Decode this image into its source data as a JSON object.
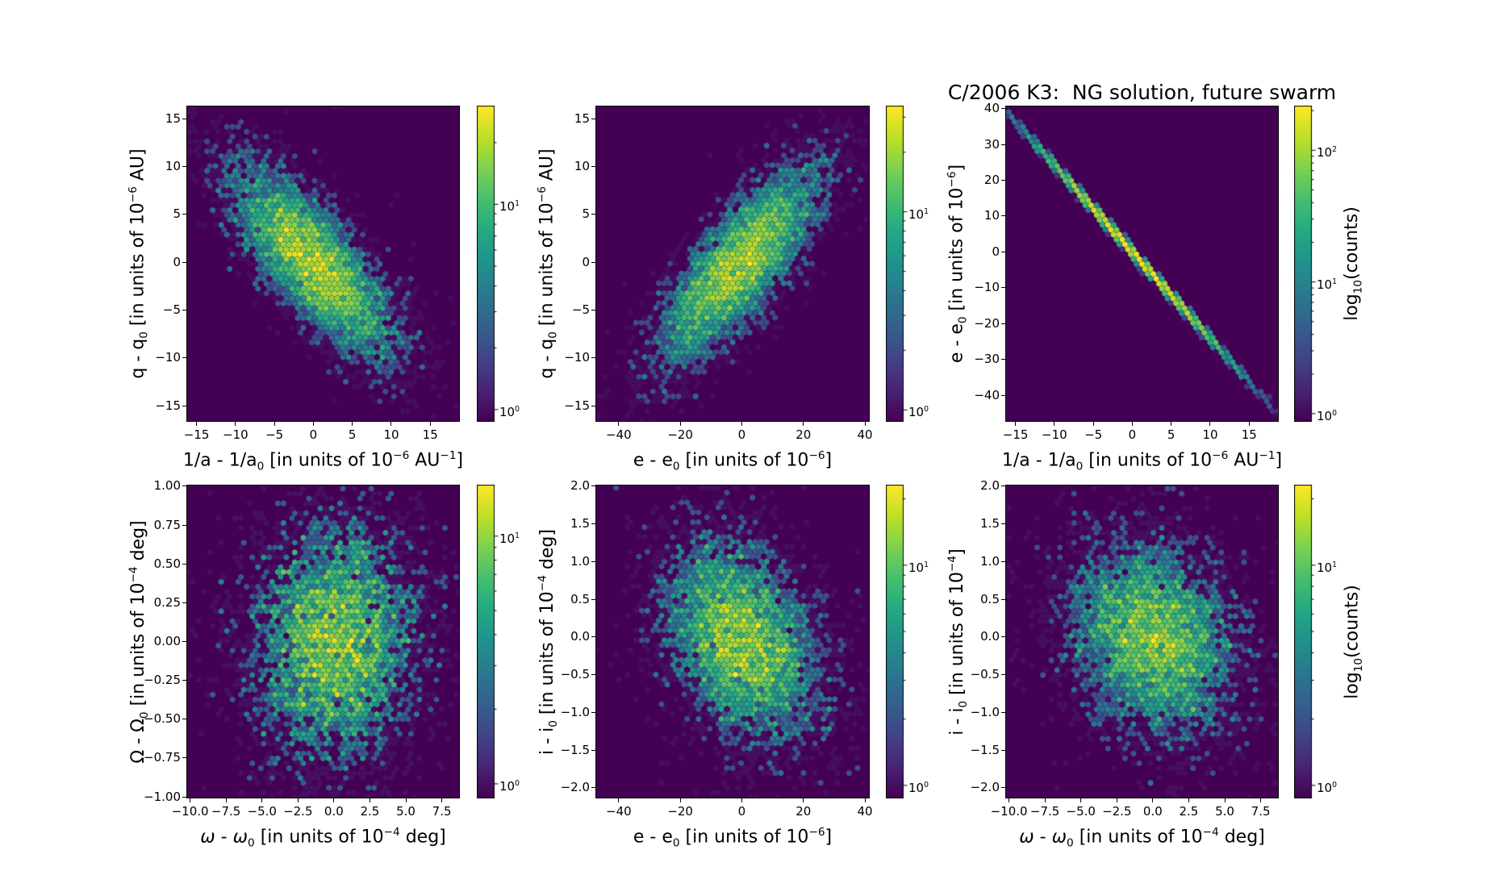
{
  "title": "C/2006 K3:  NG solution, future swarm",
  "chart_data": [
    {
      "type": "hexbin",
      "xlabel": "1/a - 1/a₀ [in units of 10⁻⁶ AU⁻¹]",
      "ylabel": "q - q₀ [in units of 10⁻⁶ AU]",
      "xlim": [
        -16.2,
        18.7
      ],
      "ylim": [
        -16.6,
        16.3
      ],
      "xtick_vals": [
        -15,
        -10,
        -5,
        0,
        5,
        10,
        15
      ],
      "xtick_labels": [
        "−15",
        "−10",
        "−5",
        "0",
        "5",
        "10",
        "15"
      ],
      "ytick_vals": [
        15,
        10,
        5,
        0,
        -5,
        -10,
        -15
      ],
      "ytick_labels": [
        "15",
        "10",
        "5",
        "0",
        "−5",
        "−10",
        "−15"
      ],
      "colorbar_tick_labels": [
        "10⁰",
        "10¹"
      ],
      "dist": {
        "n": 6200,
        "cx": 0,
        "cy": 0,
        "sx": 5.4,
        "sy": 5.1,
        "rho": -0.78,
        "seed": 101,
        "tf": 0.05,
        "ts": 1.5
      }
    },
    {
      "type": "hexbin",
      "xlabel": "e - e₀ [in units of 10⁻⁶]",
      "ylabel": "q - q₀ [in units of 10⁻⁶ AU]",
      "xlim": [
        -47.3,
        41.3
      ],
      "ylim": [
        -16.6,
        16.3
      ],
      "xtick_vals": [
        -40,
        -20,
        0,
        20,
        40
      ],
      "xtick_labels": [
        "−40",
        "−20",
        "0",
        "20",
        "40"
      ],
      "ytick_vals": [
        15,
        10,
        5,
        0,
        -5,
        -10,
        -15
      ],
      "ytick_labels": [
        "15",
        "10",
        "5",
        "0",
        "−5",
        "−10",
        "−15"
      ],
      "colorbar_tick_labels": [
        "10⁰",
        "10¹"
      ],
      "dist": {
        "n": 6200,
        "cx": 0,
        "cy": 0,
        "sx": 13,
        "sy": 5.1,
        "rho": 0.78,
        "seed": 202,
        "tf": 0.05,
        "ts": 1.5
      }
    },
    {
      "type": "hexbin",
      "xlabel": "1/a - 1/a₀ [in units of 10⁻⁶ AU⁻¹]",
      "ylabel": "e - e₀ [in units of 10⁻⁶]",
      "xlim": [
        -16.2,
        18.7
      ],
      "ylim": [
        -47.2,
        40.6
      ],
      "xtick_vals": [
        -15,
        -10,
        -5,
        0,
        5,
        10,
        15
      ],
      "xtick_labels": [
        "−15",
        "−10",
        "−5",
        "0",
        "5",
        "10",
        "15"
      ],
      "ytick_vals": [
        40,
        30,
        20,
        10,
        0,
        -10,
        -20,
        -30,
        -40
      ],
      "ytick_labels": [
        "40",
        "30",
        "20",
        "10",
        "0",
        "−10",
        "−20",
        "−30",
        "−40"
      ],
      "colorbar_tick_labels": [
        "10⁰",
        "10¹",
        "10²"
      ],
      "colorbar_label": "log₁₀(counts)",
      "dist": {
        "n": 7200,
        "cx": 0,
        "cy": 0,
        "sx": 6.0,
        "sy": 0.6,
        "slope": -2.42,
        "seed": 303,
        "tf": 0.05,
        "ts": 1.5
      }
    },
    {
      "type": "hexbin",
      "xlabel": "ω - ω₀ [in units of 10⁻⁴ deg]",
      "ylabel": "Ω - Ω₀ [in units of 10⁻⁴ deg]",
      "xlim": [
        -10.2,
        8.7
      ],
      "ylim": [
        -1.005,
        1.005
      ],
      "xtick_vals": [
        -10,
        -7.5,
        -5,
        -2.5,
        0,
        2.5,
        5,
        7.5
      ],
      "xtick_labels": [
        "−10.0",
        "−7.5",
        "−5.0",
        "−2.5",
        "0.0",
        "2.5",
        "5.0",
        "7.5"
      ],
      "ytick_vals": [
        1,
        0.75,
        0.5,
        0.25,
        0,
        -0.25,
        -0.5,
        -0.75,
        -1
      ],
      "ytick_labels": [
        "1.00",
        "0.75",
        "0.50",
        "0.25",
        "0.00",
        "−0.25",
        "−0.50",
        "−0.75",
        "−1.00"
      ],
      "colorbar_tick_labels": [
        "10⁰",
        "10¹"
      ],
      "dist": {
        "n": 6000,
        "cx": 0,
        "cy": 0,
        "sx": 2.9,
        "sy": 0.4,
        "rho": 0.05,
        "seed": 404,
        "tf": 0.1,
        "ts": 1.6
      }
    },
    {
      "type": "hexbin",
      "xlabel": "e - e₀ [in units of 10⁻⁶]",
      "ylabel": "i - i₀ [in units of 10⁻⁴ deg]",
      "xlim": [
        -47.3,
        41.3
      ],
      "ylim": [
        -2.13,
        2.01
      ],
      "xtick_vals": [
        -40,
        -20,
        0,
        20,
        40
      ],
      "xtick_labels": [
        "−40",
        "−20",
        "0",
        "20",
        "40"
      ],
      "ytick_vals": [
        2,
        1.5,
        1,
        0.5,
        0,
        -0.5,
        -1,
        -1.5,
        -2
      ],
      "ytick_labels": [
        "2.0",
        "1.5",
        "1.0",
        "0.5",
        "0.0",
        "−0.5",
        "−1.0",
        "−1.5",
        "−2.0"
      ],
      "colorbar_tick_labels": [
        "10⁰",
        "10¹"
      ],
      "dist": {
        "n": 6200,
        "cx": 0,
        "cy": -0.05,
        "sx": 12.5,
        "sy": 0.66,
        "rho": -0.3,
        "seed": 505,
        "tf": 0.1,
        "ts": 1.6
      }
    },
    {
      "type": "hexbin",
      "xlabel": "ω - ω₀ [in units of 10⁻⁴ deg]",
      "ylabel": "i - i₀ [in units of 10⁻⁴]",
      "xlim": [
        -10.2,
        8.7
      ],
      "ylim": [
        -2.13,
        2.01
      ],
      "xtick_vals": [
        -10,
        -7.5,
        -5,
        -2.5,
        0,
        2.5,
        5,
        7.5
      ],
      "xtick_labels": [
        "−10.0",
        "−7.5",
        "−5.0",
        "−2.5",
        "0.0",
        "2.5",
        "5.0",
        "7.5"
      ],
      "ytick_vals": [
        2,
        1.5,
        1,
        0.5,
        0,
        -0.5,
        -1,
        -1.5,
        -2
      ],
      "ytick_labels": [
        "2.0",
        "1.5",
        "1.0",
        "0.5",
        "0.0",
        "−0.5",
        "−1.0",
        "−1.5",
        "−2.0"
      ],
      "colorbar_tick_labels": [
        "10⁰",
        "10¹"
      ],
      "colorbar_label": "log₁₀(counts)",
      "dist": {
        "n": 6200,
        "cx": 0,
        "cy": 0,
        "sx": 2.9,
        "sy": 0.64,
        "rho": -0.2,
        "seed": 606,
        "tf": 0.1,
        "ts": 1.6
      }
    }
  ]
}
